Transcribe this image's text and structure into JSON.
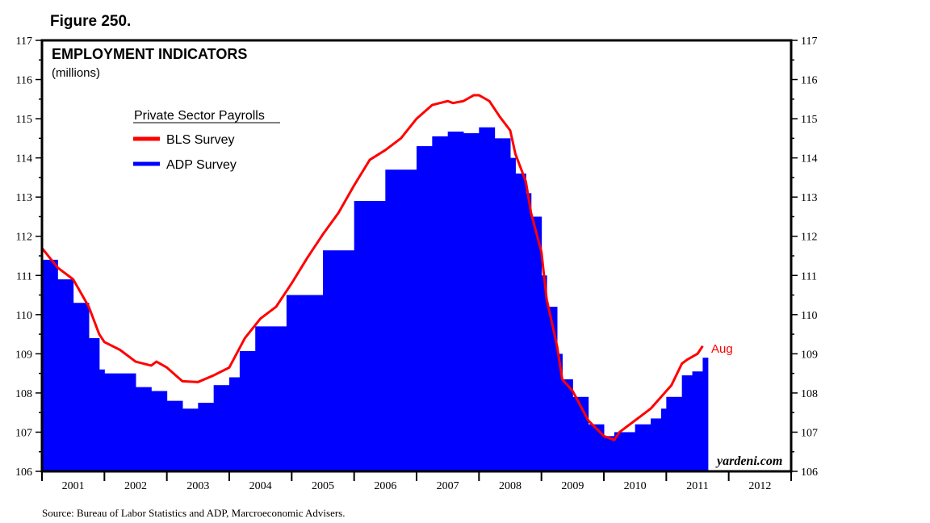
{
  "figure_label": "Figure 250.",
  "source": "Source: Bureau of Labor Statistics and ADP, Marcroeconomic Advisers.",
  "watermark": "yardeni.com",
  "chart_data": {
    "type": "bar+line",
    "title": "EMPLOYMENT INDICATORS",
    "subtitle": "(millions)",
    "legend_title": "Private Sector Payrolls",
    "legend_placement": "top-left",
    "ylim": [
      106,
      117
    ],
    "y_ticks": [
      106,
      107,
      108,
      109,
      110,
      111,
      112,
      113,
      114,
      115,
      116,
      117
    ],
    "x_ticks": [
      "2001",
      "2002",
      "2003",
      "2004",
      "2005",
      "2006",
      "2007",
      "2008",
      "2009",
      "2010",
      "2011",
      "2012"
    ],
    "xlim": [
      "2001-01",
      "2012-12"
    ],
    "end_annotation": "Aug",
    "series": [
      {
        "name": "BLS Survey",
        "type": "line",
        "color": "#ff0000",
        "points": [
          [
            "2001-01",
            111.7
          ],
          [
            "2001-04",
            111.2
          ],
          [
            "2001-07",
            110.9
          ],
          [
            "2001-10",
            110.2
          ],
          [
            "2001-12",
            109.5
          ],
          [
            "2002-01",
            109.3
          ],
          [
            "2002-04",
            109.1
          ],
          [
            "2002-07",
            108.8
          ],
          [
            "2002-10",
            108.7
          ],
          [
            "2002-11",
            108.8
          ],
          [
            "2003-01",
            108.65
          ],
          [
            "2003-04",
            108.3
          ],
          [
            "2003-07",
            108.28
          ],
          [
            "2003-10",
            108.45
          ],
          [
            "2004-01",
            108.65
          ],
          [
            "2004-04",
            109.4
          ],
          [
            "2004-07",
            109.9
          ],
          [
            "2004-10",
            110.2
          ],
          [
            "2005-01",
            110.8
          ],
          [
            "2005-04",
            111.45
          ],
          [
            "2005-07",
            112.05
          ],
          [
            "2005-10",
            112.6
          ],
          [
            "2006-01",
            113.3
          ],
          [
            "2006-04",
            113.95
          ],
          [
            "2006-07",
            114.2
          ],
          [
            "2006-10",
            114.5
          ],
          [
            "2007-01",
            115.0
          ],
          [
            "2007-04",
            115.35
          ],
          [
            "2007-07",
            115.45
          ],
          [
            "2007-08",
            115.4
          ],
          [
            "2007-10",
            115.45
          ],
          [
            "2007-12",
            115.6
          ],
          [
            "2008-01",
            115.6
          ],
          [
            "2008-03",
            115.45
          ],
          [
            "2008-05",
            115.05
          ],
          [
            "2008-07",
            114.7
          ],
          [
            "2008-08",
            114.1
          ],
          [
            "2008-10",
            113.4
          ],
          [
            "2008-11",
            112.6
          ],
          [
            "2009-01",
            111.6
          ],
          [
            "2009-02",
            110.4
          ],
          [
            "2009-04",
            109.2
          ],
          [
            "2009-05",
            108.35
          ],
          [
            "2009-07",
            108.05
          ],
          [
            "2009-10",
            107.3
          ],
          [
            "2010-01",
            106.9
          ],
          [
            "2010-03",
            106.8
          ],
          [
            "2010-04",
            107.0
          ],
          [
            "2010-06",
            107.2
          ],
          [
            "2010-08",
            107.4
          ],
          [
            "2010-10",
            107.6
          ],
          [
            "2011-01",
            108.05
          ],
          [
            "2011-02",
            108.2
          ],
          [
            "2011-04",
            108.75
          ],
          [
            "2011-05",
            108.85
          ],
          [
            "2011-07",
            109.0
          ],
          [
            "2011-08",
            109.2
          ]
        ]
      },
      {
        "name": "ADP Survey",
        "type": "bar",
        "color": "#0000ff",
        "points": [
          [
            "2001-01",
            111.4
          ],
          [
            "2001-04",
            110.9
          ],
          [
            "2001-07",
            110.3
          ],
          [
            "2001-10",
            109.4
          ],
          [
            "2001-12",
            108.6
          ],
          [
            "2002-01",
            108.5
          ],
          [
            "2002-07",
            108.15
          ],
          [
            "2002-10",
            108.05
          ],
          [
            "2003-01",
            107.8
          ],
          [
            "2003-04",
            107.6
          ],
          [
            "2003-07",
            107.75
          ],
          [
            "2003-10",
            108.2
          ],
          [
            "2004-01",
            108.4
          ],
          [
            "2004-03",
            109.07
          ],
          [
            "2004-06",
            109.7
          ],
          [
            "2004-12",
            110.5
          ],
          [
            "2005-07",
            111.64
          ],
          [
            "2006-01",
            112.9
          ],
          [
            "2006-07",
            113.7
          ],
          [
            "2007-01",
            114.3
          ],
          [
            "2007-04",
            114.55
          ],
          [
            "2007-07",
            114.67
          ],
          [
            "2007-10",
            114.63
          ],
          [
            "2008-01",
            114.78
          ],
          [
            "2008-04",
            114.5
          ],
          [
            "2008-07",
            114.0
          ],
          [
            "2008-08",
            113.6
          ],
          [
            "2008-10",
            113.1
          ],
          [
            "2008-11",
            112.5
          ],
          [
            "2009-01",
            111.0
          ],
          [
            "2009-02",
            110.2
          ],
          [
            "2009-04",
            109.0
          ],
          [
            "2009-05",
            108.35
          ],
          [
            "2009-07",
            107.9
          ],
          [
            "2009-10",
            107.2
          ],
          [
            "2010-01",
            106.9
          ],
          [
            "2010-03",
            107.0
          ],
          [
            "2010-07",
            107.2
          ],
          [
            "2010-10",
            107.35
          ],
          [
            "2010-12",
            107.6
          ],
          [
            "2011-01",
            107.9
          ],
          [
            "2011-04",
            108.45
          ],
          [
            "2011-06",
            108.55
          ],
          [
            "2011-08",
            108.9
          ]
        ]
      }
    ]
  }
}
